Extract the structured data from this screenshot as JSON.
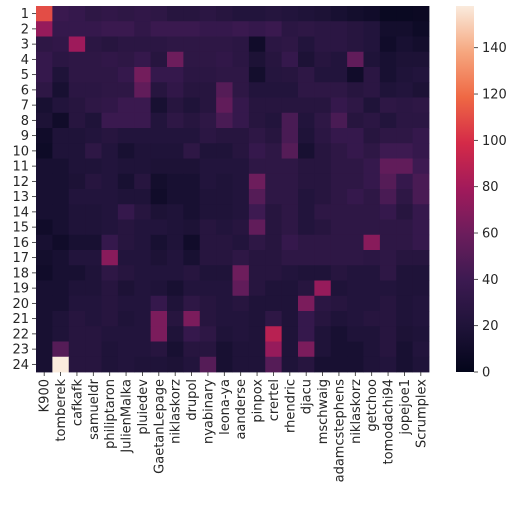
{
  "chart_data": {
    "type": "heatmap",
    "title": "",
    "xlabel": "",
    "ylabel": "",
    "x_labels": [
      "K900",
      "tomberek",
      "cafkafk",
      "samueldr",
      "philiptaron",
      "JulienMalka",
      "pluiedev",
      "GaetanLepage",
      "niklaskorz",
      "drupol",
      "nyabinary",
      "leona-ya",
      "aanderse",
      "pinpox",
      "crertel",
      "rhendric",
      "djacu",
      "mschwaig",
      "adamcstephens",
      "niklaskorz",
      "getchoo",
      "tomodachi94",
      "jopejoe1",
      "Scrumplex"
    ],
    "y_labels": [
      "1",
      "2",
      "3",
      "4",
      "5",
      "6",
      "7",
      "8",
      "9",
      "10",
      "11",
      "12",
      "13",
      "14",
      "15",
      "16",
      "17",
      "18",
      "19",
      "20",
      "21",
      "22",
      "23",
      "24"
    ],
    "colorbar": {
      "min": 0,
      "max": 158,
      "ticks": [
        0,
        20,
        40,
        60,
        80,
        100,
        120,
        140
      ]
    },
    "colormap": "rocket",
    "values": [
      [
        110,
        38,
        35,
        30,
        32,
        30,
        32,
        30,
        25,
        25,
        28,
        25,
        22,
        22,
        24,
        22,
        20,
        18,
        15,
        12,
        10,
        5,
        5,
        6
      ],
      [
        75,
        35,
        35,
        35,
        38,
        38,
        32,
        38,
        38,
        38,
        35,
        35,
        38,
        35,
        38,
        28,
        30,
        28,
        28,
        25,
        22,
        12,
        12,
        8
      ],
      [
        30,
        32,
        78,
        28,
        25,
        28,
        28,
        28,
        30,
        30,
        30,
        30,
        28,
        10,
        28,
        30,
        22,
        28,
        28,
        25,
        22,
        10,
        15,
        12
      ],
      [
        35,
        28,
        30,
        30,
        32,
        30,
        35,
        25,
        60,
        30,
        30,
        32,
        28,
        18,
        25,
        35,
        18,
        25,
        22,
        55,
        20,
        15,
        18,
        18
      ],
      [
        35,
        20,
        30,
        30,
        30,
        35,
        62,
        35,
        35,
        28,
        28,
        30,
        30,
        12,
        24,
        25,
        30,
        22,
        22,
        10,
        28,
        15,
        20,
        22
      ],
      [
        30,
        15,
        28,
        28,
        30,
        30,
        55,
        25,
        32,
        25,
        25,
        50,
        30,
        22,
        22,
        22,
        30,
        30,
        30,
        25,
        28,
        20,
        22,
        18
      ],
      [
        15,
        22,
        25,
        30,
        32,
        38,
        38,
        15,
        25,
        20,
        25,
        55,
        35,
        25,
        25,
        25,
        25,
        25,
        35,
        30,
        20,
        30,
        28,
        30
      ],
      [
        18,
        10,
        25,
        20,
        38,
        38,
        38,
        22,
        30,
        25,
        30,
        45,
        35,
        25,
        22,
        45,
        22,
        30,
        45,
        25,
        28,
        22,
        28,
        28
      ],
      [
        10,
        20,
        20,
        22,
        25,
        22,
        22,
        22,
        22,
        22,
        28,
        25,
        25,
        30,
        25,
        45,
        20,
        28,
        35,
        35,
        25,
        30,
        30,
        35
      ],
      [
        8,
        20,
        20,
        30,
        22,
        15,
        20,
        20,
        20,
        30,
        20,
        20,
        25,
        35,
        30,
        50,
        15,
        25,
        30,
        35,
        30,
        40,
        40,
        35
      ],
      [
        15,
        15,
        20,
        20,
        22,
        20,
        20,
        18,
        18,
        18,
        22,
        22,
        22,
        30,
        30,
        30,
        25,
        25,
        30,
        30,
        35,
        55,
        55,
        40
      ],
      [
        15,
        15,
        18,
        25,
        22,
        15,
        25,
        12,
        15,
        15,
        22,
        20,
        22,
        60,
        30,
        30,
        25,
        25,
        30,
        30,
        35,
        50,
        35,
        45
      ],
      [
        15,
        15,
        22,
        22,
        22,
        20,
        20,
        10,
        15,
        15,
        20,
        20,
        22,
        50,
        30,
        30,
        22,
        25,
        30,
        35,
        30,
        45,
        30,
        45
      ],
      [
        15,
        15,
        20,
        20,
        22,
        35,
        25,
        18,
        20,
        15,
        20,
        20,
        22,
        40,
        25,
        30,
        22,
        30,
        30,
        30,
        30,
        35,
        25,
        35
      ],
      [
        10,
        15,
        20,
        20,
        22,
        25,
        22,
        22,
        20,
        18,
        25,
        22,
        25,
        55,
        25,
        30,
        22,
        25,
        30,
        30,
        30,
        30,
        30,
        35
      ],
      [
        15,
        10,
        15,
        15,
        35,
        25,
        22,
        15,
        20,
        10,
        25,
        25,
        22,
        30,
        25,
        35,
        30,
        30,
        30,
        30,
        70,
        30,
        30,
        35
      ],
      [
        12,
        15,
        22,
        22,
        70,
        22,
        22,
        18,
        22,
        15,
        25,
        25,
        30,
        25,
        25,
        30,
        30,
        30,
        30,
        30,
        28,
        30,
        25,
        25
      ],
      [
        10,
        15,
        15,
        20,
        30,
        25,
        22,
        22,
        22,
        25,
        20,
        20,
        60,
        25,
        25,
        22,
        20,
        20,
        25,
        22,
        22,
        30,
        20,
        20
      ],
      [
        15,
        15,
        20,
        20,
        25,
        18,
        22,
        20,
        15,
        22,
        22,
        22,
        55,
        25,
        20,
        20,
        25,
        75,
        20,
        22,
        22,
        22,
        20,
        20
      ],
      [
        15,
        15,
        22,
        22,
        25,
        22,
        22,
        35,
        20,
        30,
        25,
        22,
        25,
        20,
        20,
        20,
        65,
        28,
        25,
        22,
        22,
        25,
        20,
        22
      ],
      [
        15,
        20,
        25,
        22,
        25,
        20,
        22,
        65,
        25,
        65,
        25,
        22,
        22,
        20,
        30,
        20,
        35,
        25,
        20,
        22,
        25,
        25,
        20,
        22
      ],
      [
        15,
        20,
        25,
        25,
        22,
        22,
        22,
        65,
        20,
        35,
        30,
        20,
        22,
        20,
        88,
        20,
        35,
        20,
        15,
        20,
        20,
        25,
        18,
        20
      ],
      [
        15,
        50,
        25,
        25,
        20,
        22,
        22,
        25,
        15,
        25,
        25,
        15,
        20,
        20,
        75,
        20,
        65,
        20,
        15,
        15,
        20,
        25,
        15,
        22
      ],
      [
        15,
        158,
        25,
        25,
        20,
        22,
        20,
        20,
        18,
        22,
        50,
        15,
        20,
        20,
        50,
        20,
        25,
        15,
        15,
        15,
        20,
        22,
        15,
        20
      ]
    ]
  }
}
